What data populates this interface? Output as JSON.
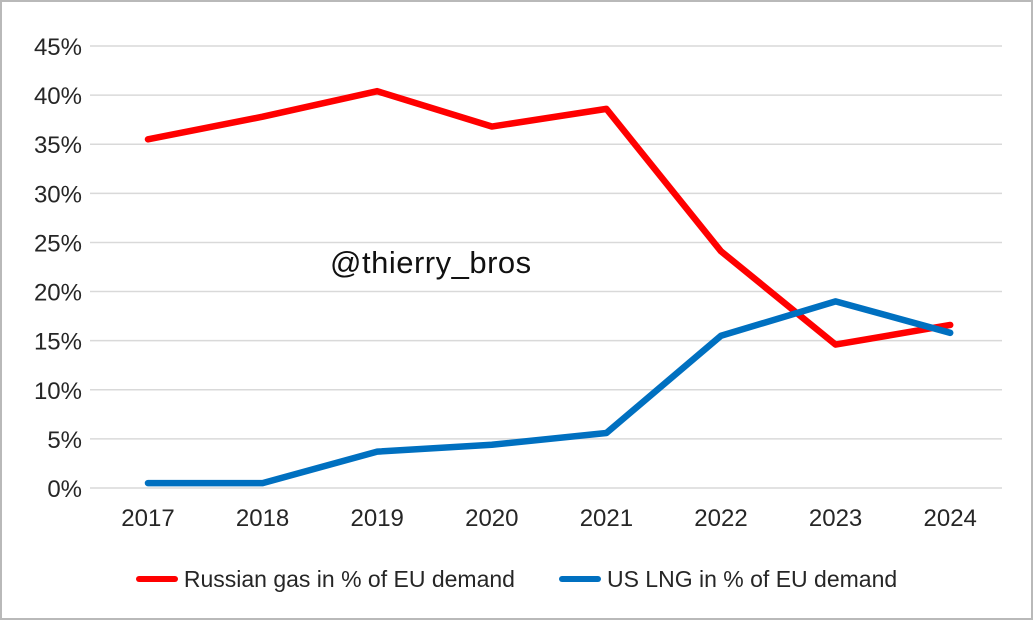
{
  "watermark": "@thierry_bros",
  "chart_data": {
    "type": "line",
    "title": "",
    "xlabel": "",
    "ylabel": "",
    "categories": [
      "2017",
      "2018",
      "2019",
      "2020",
      "2021",
      "2022",
      "2023",
      "2024"
    ],
    "series": [
      {
        "name": "Russian gas in % of EU demand",
        "color": "#FF0000",
        "values": [
          35.5,
          37.8,
          40.4,
          36.8,
          38.6,
          24.1,
          14.6,
          16.6
        ]
      },
      {
        "name": "US LNG in % of EU demand",
        "color": "#0070C0",
        "values": [
          0.5,
          0.5,
          3.7,
          4.4,
          5.6,
          15.5,
          19.0,
          15.8
        ]
      }
    ],
    "ylim": [
      0,
      45
    ],
    "ytick_step": 5,
    "ytick_labels": [
      "0%",
      "5%",
      "10%",
      "15%",
      "20%",
      "25%",
      "30%",
      "35%",
      "40%",
      "45%"
    ],
    "grid": "horizontal",
    "gridline_color": "#D9D9D9",
    "tick_label_color": "#262626",
    "legend_position": "bottom",
    "annotations": [
      {
        "text": "@thierry_bros",
        "position": "center-left-of-plot"
      }
    ]
  }
}
